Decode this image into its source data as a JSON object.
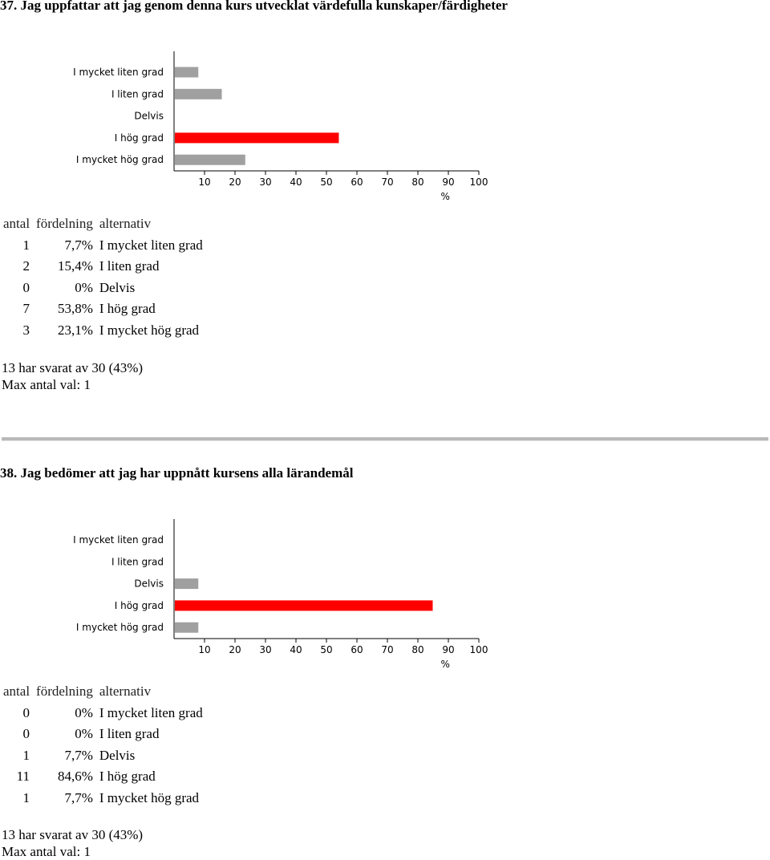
{
  "questions": [
    {
      "title": "37. Jag uppfattar att jag genom denna kurs utvecklat värdefulla kunskaper/färdigheter",
      "headers": {
        "antal": "antal",
        "fordelning": "fördelning",
        "alternativ": "alternativ"
      },
      "rows": [
        {
          "antal": "1",
          "fordelning": "7,7%",
          "alternativ": "I mycket liten grad"
        },
        {
          "antal": "2",
          "fordelning": "15,4%",
          "alternativ": "I liten grad"
        },
        {
          "antal": "0",
          "fordelning": "0%",
          "alternativ": "Delvis"
        },
        {
          "antal": "7",
          "fordelning": "53,8%",
          "alternativ": "I hög grad"
        },
        {
          "antal": "3",
          "fordelning": "23,1%",
          "alternativ": "I mycket hög grad"
        }
      ],
      "answered": "13 har svarat av 30 (43%)",
      "max_choices": "Max antal val: 1"
    },
    {
      "title": "38. Jag bedömer att jag har uppnått kursens alla lärandemål",
      "headers": {
        "antal": "antal",
        "fordelning": "fördelning",
        "alternativ": "alternativ"
      },
      "rows": [
        {
          "antal": "0",
          "fordelning": "0%",
          "alternativ": "I mycket liten grad"
        },
        {
          "antal": "0",
          "fordelning": "0%",
          "alternativ": "I liten grad"
        },
        {
          "antal": "1",
          "fordelning": "7,7%",
          "alternativ": "Delvis"
        },
        {
          "antal": "11",
          "fordelning": "84,6%",
          "alternativ": "I hög grad"
        },
        {
          "antal": "1",
          "fordelning": "7,7%",
          "alternativ": "I mycket hög grad"
        }
      ],
      "answered": "13 har svarat av 30 (43%)",
      "max_choices": "Max antal val: 1"
    }
  ],
  "chart_data": [
    {
      "type": "bar",
      "orientation": "horizontal",
      "categories": [
        "I mycket liten grad",
        "I liten grad",
        "Delvis",
        "I hög grad",
        "I mycket hög grad"
      ],
      "values": [
        7.7,
        15.4,
        0,
        53.8,
        23.1
      ],
      "highlight_index": 3,
      "xlim": [
        0,
        100
      ],
      "xticks": [
        10,
        20,
        30,
        40,
        50,
        60,
        70,
        80,
        90,
        100
      ],
      "xunit": "%",
      "colors": {
        "bar": "#a0a0a0",
        "highlight": "#ff0000",
        "axis": "#000000"
      }
    },
    {
      "type": "bar",
      "orientation": "horizontal",
      "categories": [
        "I mycket liten grad",
        "I liten grad",
        "Delvis",
        "I hög grad",
        "I mycket hög grad"
      ],
      "values": [
        0,
        0,
        7.7,
        84.6,
        7.7
      ],
      "highlight_index": 3,
      "xlim": [
        0,
        100
      ],
      "xticks": [
        10,
        20,
        30,
        40,
        50,
        60,
        70,
        80,
        90,
        100
      ],
      "xunit": "%",
      "colors": {
        "bar": "#a0a0a0",
        "highlight": "#ff0000",
        "axis": "#000000"
      }
    }
  ]
}
